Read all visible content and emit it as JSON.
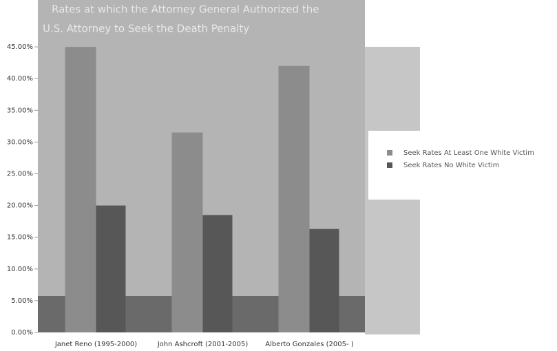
{
  "chart_data": {
    "type": "bar",
    "title": "Rates at which the Attorney General Authorized the",
    "subtitle": "U.S. Attorney to Seek the Death Penalty",
    "categories": [
      "Janet Reno (1995-2000)",
      "John Ashcroft (2001-2005)",
      "Alberto Gonzales (2005- )"
    ],
    "series": [
      {
        "name": "Seek Rates At Least One White Victim",
        "color": "#8c8c8c",
        "values": [
          45,
          31.5,
          42
        ]
      },
      {
        "name": "Seek Rates No White Victim",
        "color": "#575757",
        "values": [
          20,
          18.5,
          16.3
        ]
      }
    ],
    "ylim": [
      0,
      50
    ],
    "yticks": [
      {
        "value": 0,
        "label": "0.00%"
      },
      {
        "value": 5,
        "label": "5.00%"
      },
      {
        "value": 10,
        "label": "10.00%"
      },
      {
        "value": 15,
        "label": "15.00%"
      },
      {
        "value": 20,
        "label": "20.00%"
      },
      {
        "value": 25,
        "label": "25.00%"
      },
      {
        "value": 30,
        "label": "30.00%"
      },
      {
        "value": 35,
        "label": "35.00%"
      },
      {
        "value": 40,
        "label": "40.00%"
      },
      {
        "value": 45,
        "label": "45.00%"
      }
    ],
    "legend": "right"
  }
}
